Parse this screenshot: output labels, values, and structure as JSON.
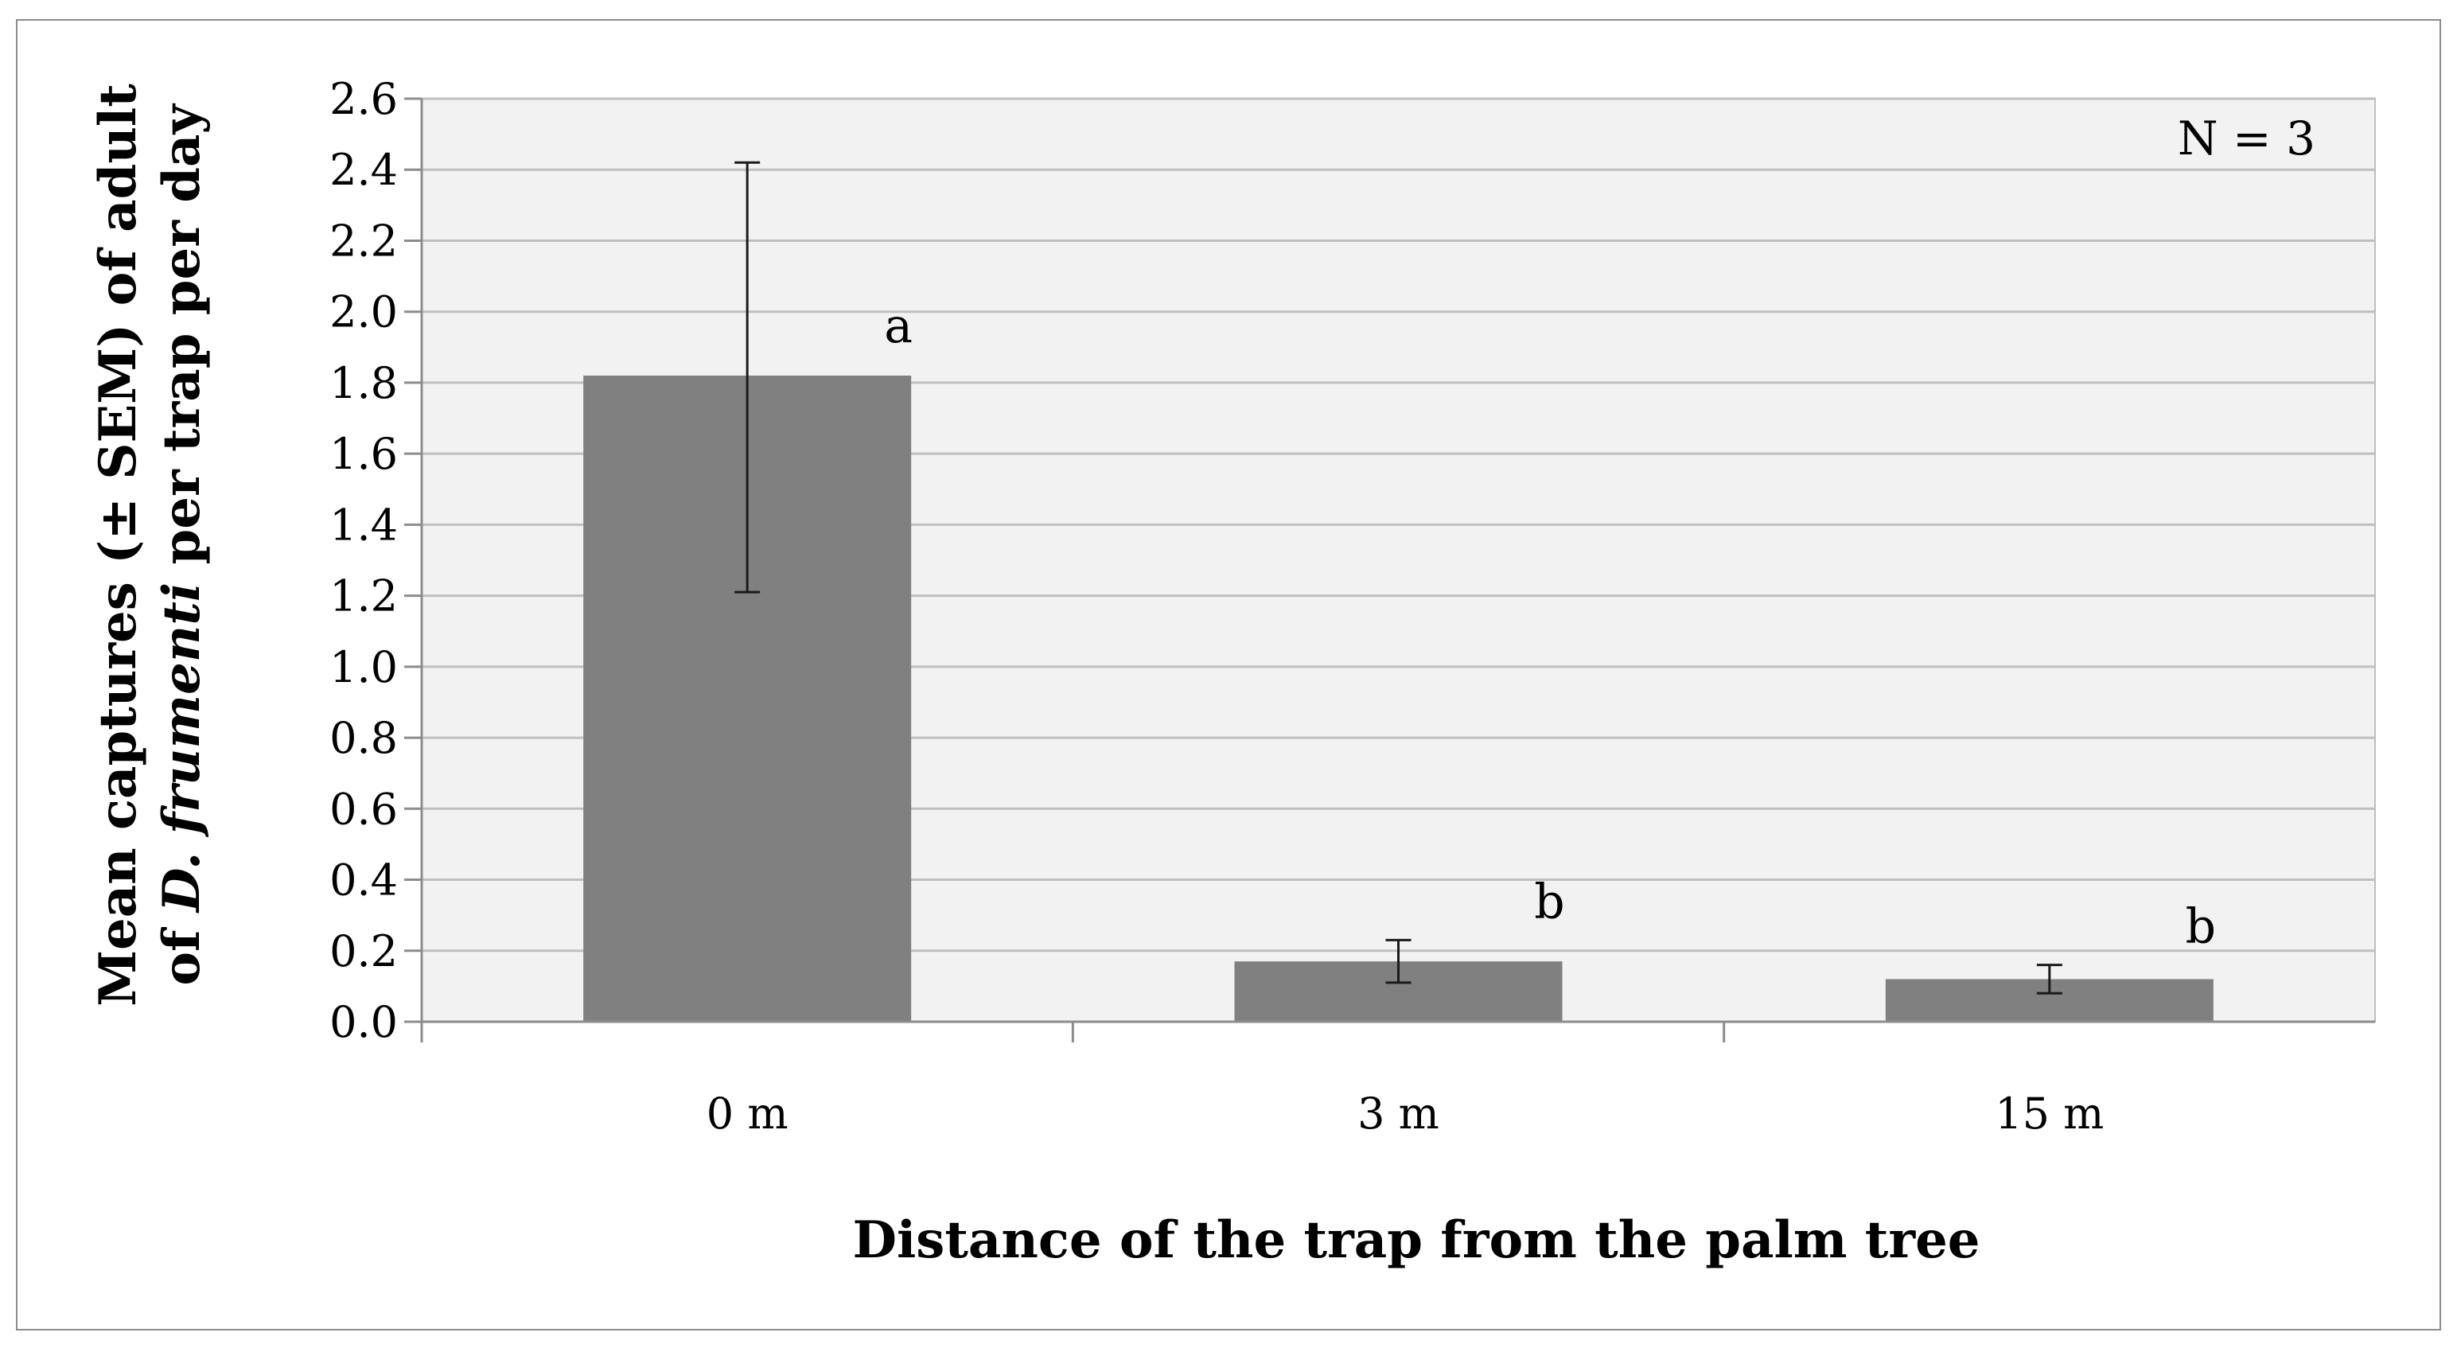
{
  "chart_data": {
    "type": "bar",
    "categories": [
      "0 m",
      "3 m",
      "15 m"
    ],
    "values": [
      1.82,
      0.17,
      0.12
    ],
    "error_low": [
      1.21,
      0.11,
      0.08
    ],
    "error_high": [
      2.42,
      0.23,
      0.16
    ],
    "significance_letters": [
      "a",
      "b",
      "b"
    ],
    "ylim": [
      0,
      2.6
    ],
    "yticks": [
      "0.0",
      "0.2",
      "0.4",
      "0.6",
      "0.8",
      "1.0",
      "1.2",
      "1.4",
      "1.6",
      "1.8",
      "2.0",
      "2.2",
      "2.4",
      "2.6"
    ],
    "xlabel": "Distance of the trap from the palm tree",
    "ylabel": {
      "line1": "Mean captures (± SEM) of adult",
      "line2_pre": "of ",
      "line2_italic": "D. frumenti",
      "line2_post": " per trap per day"
    },
    "annotation": "N = 3",
    "grid": true,
    "legend": "none",
    "colors": {
      "bar": "#808080",
      "plot_background": "#f2f2f2",
      "gridline": "#bfbfbf",
      "frame": "#8c8c8c"
    }
  }
}
